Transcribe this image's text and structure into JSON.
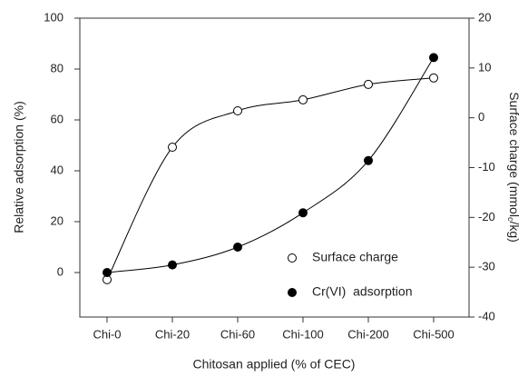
{
  "chart_data": {
    "type": "line",
    "xlabel": "Chitosan applied (% of CEC)",
    "ylabel": "Relative adsorption (%)",
    "y2label": [
      "Surface charge (mmol",
      "c",
      "/kg)"
    ],
    "categories": [
      "Chi-0",
      "Chi-20",
      "Chi-60",
      "Chi-100",
      "Chi-200",
      "Chi-500"
    ],
    "ylim": [
      -17.5,
      100
    ],
    "yticks": [
      0,
      20,
      40,
      60,
      80,
      100
    ],
    "y2lim": [
      -40,
      20
    ],
    "y2ticks": [
      -40,
      -30,
      -20,
      -10,
      0,
      10,
      20
    ],
    "legend": "bottom-right",
    "smooth": true,
    "series": [
      {
        "name": "Surface charge",
        "color": "#000000",
        "marker": "open",
        "axis": "y2",
        "values": [
          -32.5,
          -5.9,
          1.4,
          3.6,
          6.7,
          8.0
        ]
      },
      {
        "name": "Cr(VI)  adsorption",
        "color": "#000000",
        "marker": "filled",
        "values": [
          0,
          3,
          10,
          23.5,
          44,
          84.5
        ]
      }
    ]
  }
}
